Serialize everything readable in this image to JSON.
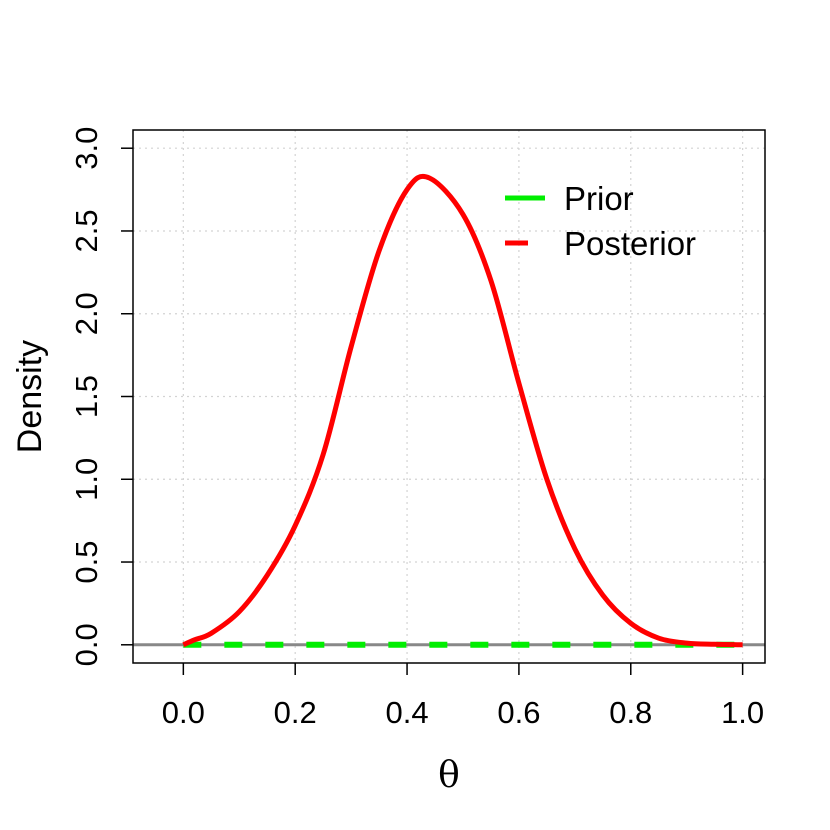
{
  "chart_data": {
    "type": "line",
    "title": "",
    "xlabel": "θ",
    "ylabel": "Density",
    "xlim": [
      -0.09,
      1.04
    ],
    "ylim": [
      -0.11,
      3.11
    ],
    "x_ticks": [
      "0.0",
      "0.2",
      "0.4",
      "0.6",
      "0.8",
      "1.0"
    ],
    "y_ticks": [
      "0.0",
      "0.5",
      "1.0",
      "1.5",
      "2.0",
      "2.5",
      "3.0"
    ],
    "grid": true,
    "legend_position": "top-right",
    "reference_line": {
      "y": 0,
      "color": "#888888"
    },
    "series": [
      {
        "name": "Prior",
        "color": "#00ee00",
        "style": "dashed",
        "x": [
          0.0,
          1.0
        ],
        "y": [
          0.0,
          0.0
        ]
      },
      {
        "name": "Posterior",
        "color": "#ff0000",
        "style": "solid",
        "x": [
          0.0,
          0.02,
          0.05,
          0.1,
          0.15,
          0.2,
          0.25,
          0.3,
          0.35,
          0.4,
          0.44,
          0.5,
          0.55,
          0.6,
          0.65,
          0.7,
          0.75,
          0.8,
          0.85,
          0.9,
          0.95,
          1.0
        ],
        "y": [
          0.0,
          0.03,
          0.07,
          0.2,
          0.42,
          0.72,
          1.15,
          1.8,
          2.38,
          2.75,
          2.82,
          2.6,
          2.2,
          1.58,
          1.0,
          0.58,
          0.3,
          0.13,
          0.04,
          0.01,
          0.003,
          0.0
        ]
      }
    ]
  }
}
